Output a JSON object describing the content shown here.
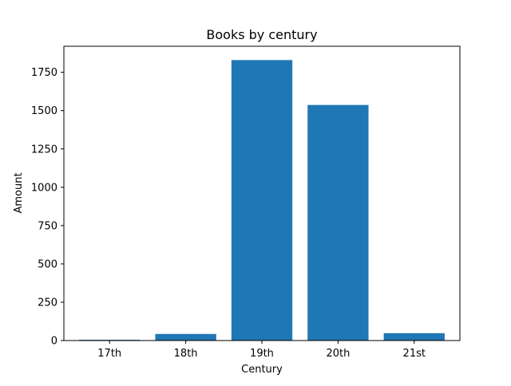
{
  "chart_data": {
    "type": "bar",
    "title": "Books by century",
    "xlabel": "Century",
    "ylabel": "Amount",
    "categories": [
      "17th",
      "18th",
      "19th",
      "20th",
      "21st"
    ],
    "values": [
      5,
      43,
      1830,
      1537,
      48
    ],
    "ylim": [
      0,
      1920
    ],
    "yticks": [
      0,
      250,
      500,
      750,
      1000,
      1250,
      1500,
      1750
    ],
    "grid": false,
    "bar_color": "#1f77b4"
  }
}
